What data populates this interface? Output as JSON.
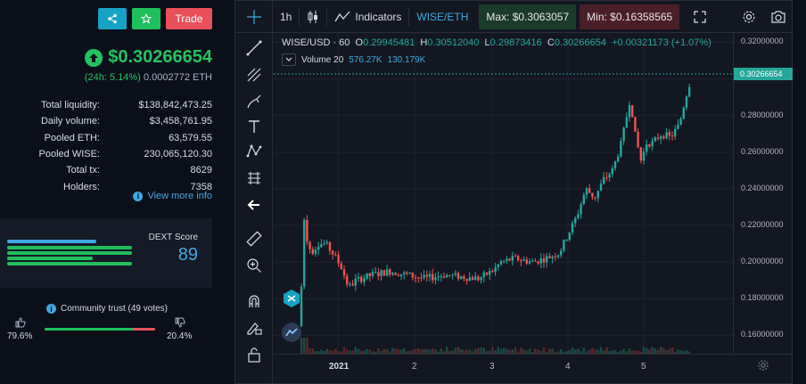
{
  "header": {
    "trade_label": "Trade",
    "price": "$0.30266654",
    "change_24h": "(24h: 5.14%)",
    "price_eth": "0.0002772 ETH"
  },
  "stats": [
    {
      "key": "Total liquidity:",
      "value": "$138,842,473.25"
    },
    {
      "key": "Daily volume:",
      "value": "$3,458,761.95"
    },
    {
      "key": "Pooled ETH:",
      "value": "63,579.55"
    },
    {
      "key": "Pooled WISE:",
      "value": "230,065,120.30"
    },
    {
      "key": "Total tx:",
      "value": "8629"
    },
    {
      "key": "Holders:",
      "value": "7358"
    }
  ],
  "view_more": "View more info",
  "dext": {
    "label": "DEXT Score",
    "score": "89"
  },
  "community": {
    "label": "Community trust (49 votes)",
    "positive": "79.6%",
    "negative": "20.4%",
    "positive_fraction": 0.796
  },
  "toolbar": {
    "interval": "1h",
    "indicators": "Indicators",
    "pair": "WISE/ETH",
    "max": "Max: $0.3063057",
    "min": "Min: $0.16358565"
  },
  "legend": {
    "symbol": "WISE/USD · 60",
    "o_label": "O",
    "o_value": "0.29945481",
    "h_label": "H",
    "h_value": "0.30512040",
    "l_label": "L",
    "l_value": "0.29873416",
    "c_label": "C",
    "c_value": "0.30266654",
    "change": "+0.00321173 (+1.07%)",
    "volume_label": "Volume 20",
    "volume_1": "576.27K",
    "volume_2": "130.179K"
  },
  "chart_data": {
    "type": "candlestick",
    "y_ticks": [
      "0.32000000",
      "0.30000000",
      "0.28000000",
      "0.26000000",
      "0.24000000",
      "0.22000000",
      "0.20000000",
      "0.18000000",
      "0.16000000"
    ],
    "current_price_label": "0.30266654",
    "x_ticks": [
      "2021",
      "2",
      "3",
      "4",
      "5"
    ],
    "ylim": [
      0.15,
      0.325
    ],
    "colors": {
      "up": "#26a69a",
      "down": "#ef5350"
    }
  }
}
